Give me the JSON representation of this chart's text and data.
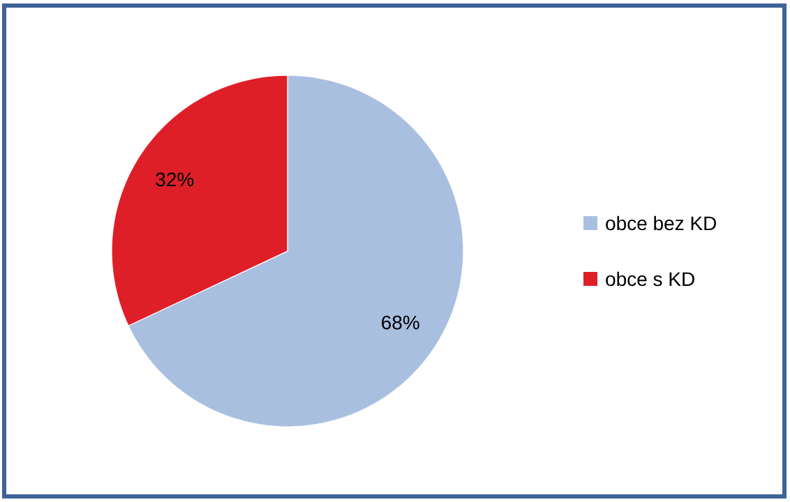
{
  "chart_data": {
    "type": "pie",
    "categories": [
      "obce bez KD",
      "obce s KD"
    ],
    "values": [
      68,
      32
    ],
    "colors": [
      "#a9bfe0",
      "#de1f28"
    ],
    "value_labels": [
      "68%",
      "32%"
    ],
    "legend": "right"
  }
}
